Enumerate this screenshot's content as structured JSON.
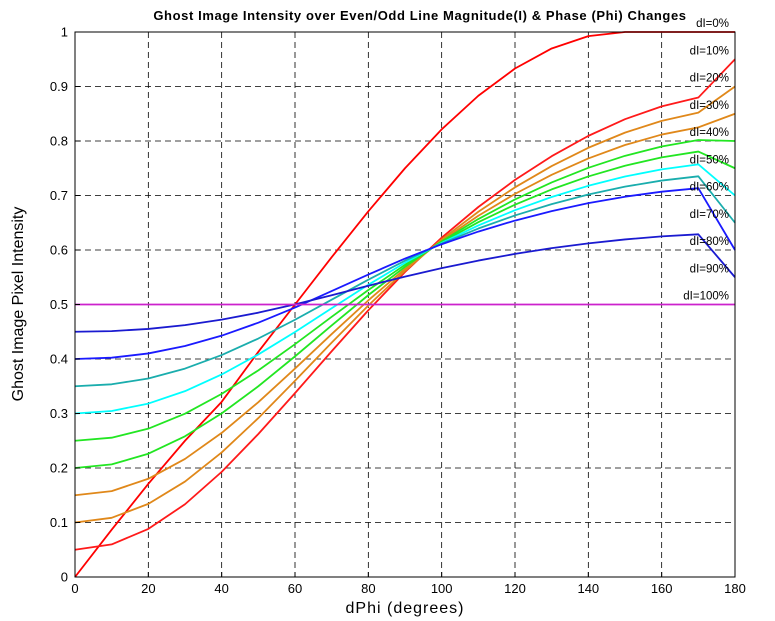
{
  "chart_data": {
    "type": "line",
    "title": "Ghost Image Intensity over Even/Odd Line Magnitude(I) & Phase (Phi) Changes",
    "xlabel": "dPhi (degrees)",
    "ylabel": "Ghost Image Pixel Intensity",
    "xlim": [
      0,
      180
    ],
    "ylim": [
      0,
      1
    ],
    "xticks": [
      0,
      20,
      40,
      60,
      80,
      100,
      120,
      140,
      160,
      180
    ],
    "yticks": [
      0,
      0.1,
      0.2,
      0.3,
      0.4,
      0.5,
      0.6,
      0.7,
      0.8,
      0.9,
      1
    ],
    "grid": true,
    "legend": "inline labels at right end of each curve",
    "x": [
      0,
      10,
      20,
      30,
      40,
      50,
      60,
      70,
      80,
      90,
      100,
      110,
      120,
      130,
      140,
      150,
      160,
      170,
      180
    ],
    "series": [
      {
        "name": "dI=0%",
        "color": "#ff0000",
        "values": [
          0,
          0.0868,
          0.171,
          0.25,
          0.3214,
          0.4132,
          0.5,
          0.5868,
          0.671,
          0.75,
          0.8214,
          0.883,
          0.933,
          0.9698,
          0.9924,
          1.0,
          1.0,
          1.0,
          1.0
        ]
      },
      {
        "name": "dI=10%",
        "color": "#ff1a1a",
        "values": [
          0.05,
          0.0598,
          0.0882,
          0.1335,
          0.1929,
          0.2624,
          0.3374,
          0.4142,
          0.4894,
          0.5596,
          0.6226,
          0.6789,
          0.7286,
          0.7721,
          0.8094,
          0.84,
          0.8635,
          0.8797,
          0.95
        ]
      },
      {
        "name": "dI=20%",
        "color": "#e0881a",
        "values": [
          0.1,
          0.1086,
          0.1342,
          0.1751,
          0.2286,
          0.2916,
          0.36,
          0.43,
          0.4982,
          0.562,
          0.6194,
          0.6702,
          0.715,
          0.754,
          0.7876,
          0.8154,
          0.837,
          0.852,
          0.9
        ]
      },
      {
        "name": "dI=30%",
        "color": "#e0881a",
        "values": [
          0.15,
          0.1576,
          0.1802,
          0.2166,
          0.2644,
          0.3208,
          0.3824,
          0.4458,
          0.5076,
          0.5654,
          0.6172,
          0.6628,
          0.703,
          0.738,
          0.768,
          0.7926,
          0.8118,
          0.825,
          0.85
        ]
      },
      {
        "name": "dI=40%",
        "color": "#22e622",
        "values": [
          0.2,
          0.2066,
          0.2262,
          0.2582,
          0.3002,
          0.35,
          0.4048,
          0.4616,
          0.5172,
          0.5692,
          0.6158,
          0.6568,
          0.6928,
          0.724,
          0.7508,
          0.7728,
          0.79,
          0.8018,
          0.8
        ]
      },
      {
        "name": "dI=50%",
        "color": "#22e622",
        "values": [
          0.25,
          0.2556,
          0.2722,
          0.2996,
          0.336,
          0.3792,
          0.4272,
          0.4774,
          0.5266,
          0.5728,
          0.6144,
          0.651,
          0.6832,
          0.7112,
          0.735,
          0.7546,
          0.77,
          0.7806,
          0.75
        ]
      },
      {
        "name": "dI=60%",
        "color": "#00ffff",
        "values": [
          0.3,
          0.3046,
          0.3182,
          0.341,
          0.3716,
          0.4084,
          0.4496,
          0.4932,
          0.5362,
          0.5766,
          0.613,
          0.645,
          0.673,
          0.6972,
          0.7178,
          0.7348,
          0.748,
          0.7572,
          0.7
        ]
      },
      {
        "name": "dI=70%",
        "color": "#1aadad",
        "values": [
          0.35,
          0.3536,
          0.3642,
          0.3824,
          0.4072,
          0.4376,
          0.472,
          0.5088,
          0.5456,
          0.5804,
          0.6118,
          0.6394,
          0.6634,
          0.6842,
          0.7018,
          0.7162,
          0.7274,
          0.7352,
          0.65
        ]
      },
      {
        "name": "dI=80%",
        "color": "#1a1aff",
        "values": [
          0.4,
          0.4024,
          0.4102,
          0.4238,
          0.4428,
          0.4666,
          0.4944,
          0.5246,
          0.555,
          0.5842,
          0.6106,
          0.6338,
          0.654,
          0.6714,
          0.686,
          0.6978,
          0.707,
          0.7134,
          0.6
        ]
      },
      {
        "name": "dI=90%",
        "color": "#1a1ad0",
        "values": [
          0.45,
          0.4512,
          0.4552,
          0.4622,
          0.4722,
          0.485,
          0.5002,
          0.517,
          0.5344,
          0.5512,
          0.5668,
          0.5806,
          0.5928,
          0.6034,
          0.6122,
          0.6194,
          0.625,
          0.6288,
          0.55
        ]
      },
      {
        "name": "dI=100%",
        "color": "#cc22cc",
        "values": [
          0.5,
          0.5,
          0.5,
          0.5,
          0.5,
          0.5,
          0.5,
          0.5,
          0.5,
          0.5,
          0.5,
          0.5,
          0.5,
          0.5,
          0.5,
          0.5,
          0.5,
          0.5,
          0.5
        ]
      }
    ]
  }
}
